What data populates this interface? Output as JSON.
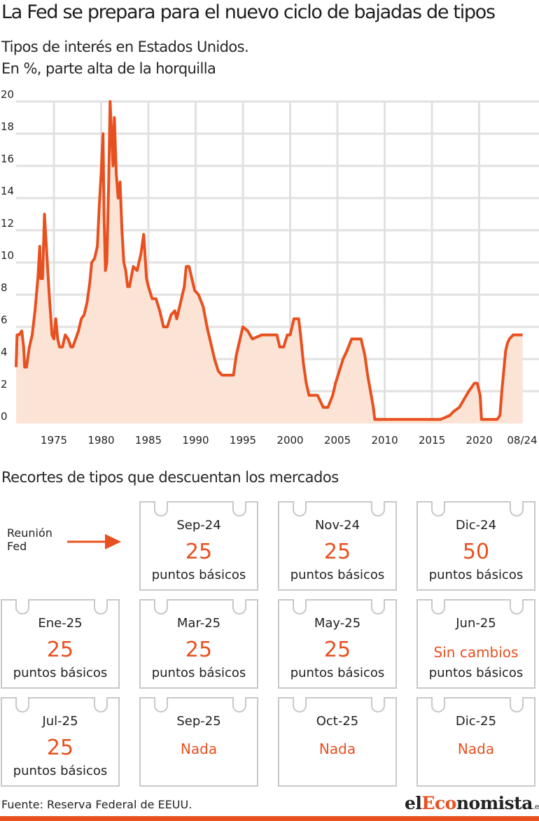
{
  "title": "La Fed se prepara para el nuevo ciclo de bajadas de tipos",
  "subtitle_line1": "Tipos de interés en Estados Unidos.",
  "subtitle_line2": "En %, parte alta de la horquilla",
  "colors": {
    "accent": "#e8501f",
    "area": "#fbe3d6",
    "grid": "#e1e1e1",
    "card_border": "#c8c8c8"
  },
  "chart_data": {
    "type": "area",
    "title": "Tipos de interés en Estados Unidos.",
    "ylabel": "En %, parte alta de la horquilla",
    "xlabel": "",
    "xlim": [
      1971,
      2024.7
    ],
    "ylim": [
      0,
      20
    ],
    "yticks": [
      "0",
      "2",
      "4",
      "6",
      "8",
      "10",
      "12",
      "14",
      "16",
      "18",
      "20"
    ],
    "xticks": [
      {
        "x": 1975,
        "label": "1975"
      },
      {
        "x": 1980,
        "label": "1980"
      },
      {
        "x": 1985,
        "label": "1985"
      },
      {
        "x": 1990,
        "label": "1990"
      },
      {
        "x": 1995,
        "label": "1995"
      },
      {
        "x": 2000,
        "label": "2000"
      },
      {
        "x": 2005,
        "label": "2005"
      },
      {
        "x": 2010,
        "label": "2010"
      },
      {
        "x": 2015,
        "label": "2015"
      },
      {
        "x": 2020,
        "label": "2020"
      },
      {
        "x": 2024.6,
        "label": "08/24"
      }
    ],
    "grid": true,
    "series": [
      {
        "x": [
          1971.0,
          1971.1,
          1971.3,
          1971.6,
          1971.8,
          1971.9,
          1972.1,
          1972.4,
          1972.7,
          1973.0,
          1973.3,
          1973.5,
          1973.6,
          1973.8,
          1974.0,
          1974.3,
          1974.5,
          1974.8,
          1975.0,
          1975.2,
          1975.4,
          1975.6,
          1975.9,
          1976.2,
          1976.5,
          1976.8,
          1977.0,
          1977.3,
          1977.6,
          1977.9,
          1978.2,
          1978.5,
          1978.8,
          1979.0,
          1979.3,
          1979.6,
          1979.8,
          1980.0,
          1980.2,
          1980.3,
          1980.45,
          1980.6,
          1980.8,
          1980.95,
          1981.1,
          1981.25,
          1981.4,
          1981.6,
          1981.8,
          1982.0,
          1982.2,
          1982.4,
          1982.6,
          1982.8,
          1983.0,
          1983.4,
          1983.8,
          1984.2,
          1984.5,
          1984.8,
          1985.0,
          1985.4,
          1985.8,
          1986.2,
          1986.6,
          1987.0,
          1987.4,
          1987.8,
          1988.0,
          1988.4,
          1988.8,
          1989.0,
          1989.3,
          1989.6,
          1989.9,
          1990.3,
          1990.8,
          1991.2,
          1991.6,
          1992.0,
          1992.4,
          1992.8,
          1993.5,
          1994.0,
          1994.3,
          1994.6,
          1995.0,
          1995.5,
          1996.0,
          1997.0,
          1998.0,
          1998.6,
          1998.9,
          1999.3,
          1999.7,
          2000.0,
          2000.4,
          2000.9,
          2001.1,
          2001.4,
          2001.7,
          2002.0,
          2002.9,
          2003.5,
          2004.0,
          2004.5,
          2004.8,
          2005.2,
          2005.6,
          2006.0,
          2006.5,
          2007.5,
          2007.7,
          2007.9,
          2008.2,
          2008.5,
          2008.8,
          2008.95,
          2009.5,
          2015.9,
          2016.9,
          2017.3,
          2017.9,
          2018.4,
          2018.9,
          2019.5,
          2019.8,
          2020.1,
          2020.25,
          2021.9,
          2022.2,
          2022.4,
          2022.6,
          2022.8,
          2023.0,
          2023.2,
          2023.6,
          2024.6
        ],
        "values": [
          3.5,
          5.5,
          5.5,
          5.75,
          4.75,
          3.5,
          3.5,
          4.75,
          5.5,
          7.0,
          9.0,
          11.0,
          9.0,
          9.0,
          13.0,
          10.0,
          8.0,
          5.5,
          5.25,
          6.5,
          5.25,
          4.75,
          4.75,
          5.5,
          5.25,
          4.75,
          4.75,
          5.25,
          5.75,
          6.5,
          6.75,
          7.5,
          8.75,
          10.0,
          10.25,
          11.0,
          13.5,
          15.5,
          18.0,
          13.0,
          9.5,
          10.0,
          15.0,
          20.0,
          18.0,
          16.0,
          19.0,
          15.5,
          14.0,
          15.0,
          12.0,
          10.0,
          9.5,
          8.5,
          8.5,
          9.75,
          9.5,
          10.5,
          11.75,
          9.0,
          8.5,
          7.75,
          7.75,
          7.0,
          6.0,
          6.0,
          6.75,
          7.0,
          6.5,
          7.5,
          8.5,
          9.75,
          9.75,
          9.0,
          8.25,
          8.0,
          7.25,
          6.0,
          5.0,
          4.0,
          3.25,
          3.0,
          3.0,
          3.0,
          4.25,
          5.0,
          6.0,
          5.75,
          5.25,
          5.5,
          5.5,
          5.5,
          4.75,
          4.75,
          5.5,
          5.5,
          6.5,
          6.5,
          5.5,
          3.75,
          2.5,
          1.75,
          1.75,
          1.0,
          1.0,
          1.75,
          2.5,
          3.25,
          4.0,
          4.5,
          5.25,
          5.25,
          4.75,
          4.25,
          3.0,
          2.0,
          1.0,
          0.25,
          0.25,
          0.25,
          0.5,
          0.75,
          1.0,
          1.5,
          2.0,
          2.5,
          2.5,
          1.75,
          0.25,
          0.25,
          0.5,
          2.0,
          3.25,
          4.5,
          5.0,
          5.25,
          5.5,
          5.5
        ]
      }
    ]
  },
  "recortes": {
    "title": "Recortes de tipos que descuentan los mercados",
    "legend_label_line1": "Reunión",
    "legend_label_line2": "Fed",
    "cards": [
      {
        "month": "Sep-24",
        "value": "25",
        "unit": "puntos básicos"
      },
      {
        "month": "Nov-24",
        "value": "25",
        "unit": "puntos básicos"
      },
      {
        "month": "Dic-24",
        "value": "50",
        "unit": "puntos básicos"
      },
      {
        "month": "Ene-25",
        "value": "25",
        "unit": "puntos básicos"
      },
      {
        "month": "Mar-25",
        "value": "25",
        "unit": "puntos básicos"
      },
      {
        "month": "May-25",
        "value": "25",
        "unit": "puntos básicos"
      },
      {
        "month": "Jun-25",
        "value": "Sin cambios",
        "unit": "puntos básicos"
      },
      {
        "month": "Jul-25",
        "value": "25",
        "unit": "puntos básicos"
      },
      {
        "month": "Sep-25",
        "value": "Nada",
        "unit": ""
      },
      {
        "month": "Oct-25",
        "value": "Nada",
        "unit": ""
      },
      {
        "month": "Dic-25",
        "value": "Nada",
        "unit": ""
      }
    ]
  },
  "footer": {
    "source": "Fuente: Reserva Federal de EEUU.",
    "logo_prefix": "el",
    "logo_accent": "Eco",
    "logo_suffix": "nomista",
    "logo_tld": ".es"
  }
}
